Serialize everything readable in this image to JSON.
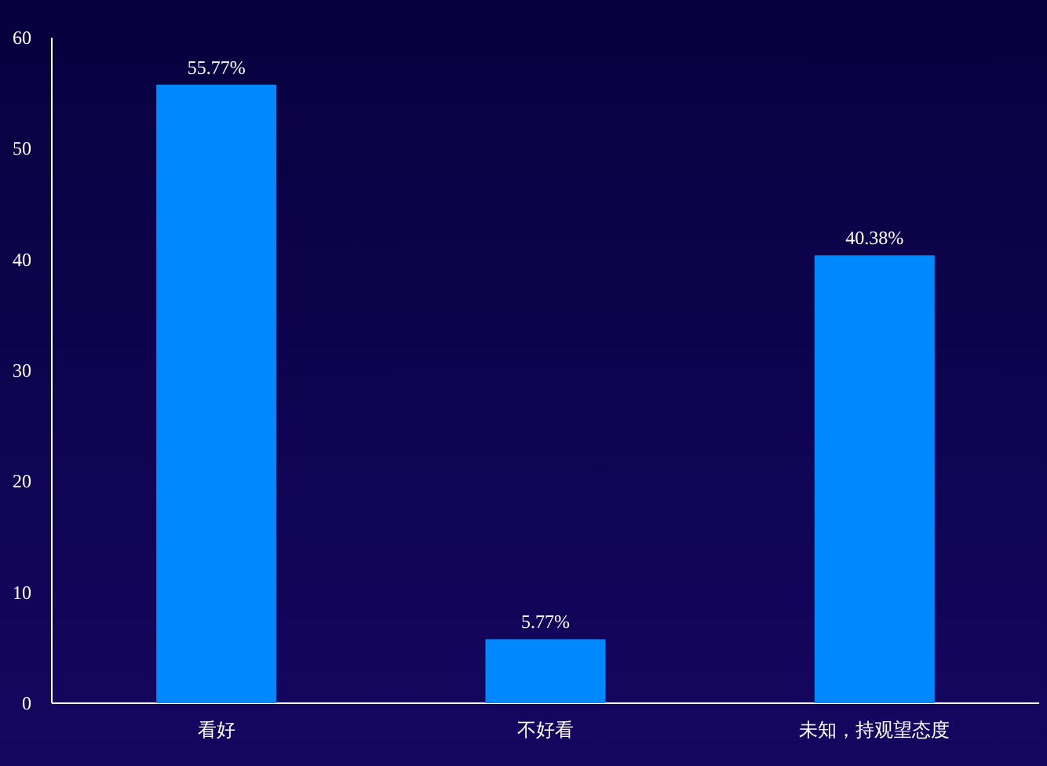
{
  "chart_data": {
    "type": "bar",
    "categories": [
      "看好",
      "不好看",
      "未知，持观望态度"
    ],
    "values": [
      55.77,
      5.77,
      40.38
    ],
    "value_labels": [
      "55.77%",
      "5.77%",
      "40.38%"
    ],
    "color": "#0088ff",
    "ylim": [
      0,
      60
    ],
    "yticks": [
      0,
      10,
      20,
      30,
      40,
      50,
      60
    ]
  }
}
